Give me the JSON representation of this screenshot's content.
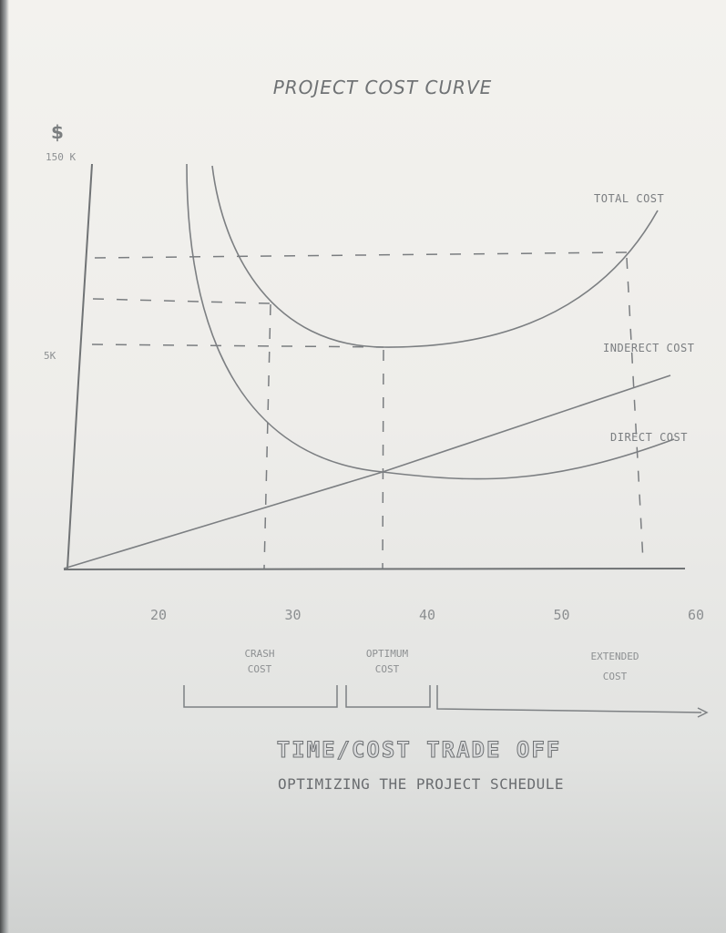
{
  "chart_data": {
    "type": "line",
    "title": "PROJECT COST CURVE",
    "ylabel": "$",
    "y_ticks": [
      "150 K",
      "5K"
    ],
    "x_ticks": [
      20,
      30,
      40,
      50,
      60
    ],
    "xlim": [
      20,
      60
    ],
    "series": [
      {
        "name": "TOTAL COST",
        "x": [
          24,
          26,
          29,
          32,
          35,
          36.5,
          40,
          45,
          50,
          54,
          56,
          58
        ],
        "y": [
          100,
          78,
          58,
          46,
          41,
          40,
          41,
          44,
          50,
          60,
          70,
          82
        ]
      },
      {
        "name": "INDERECT COST",
        "x": [
          22,
          23,
          25,
          28,
          32,
          36.5,
          42,
          48,
          52,
          55,
          58
        ],
        "y": [
          100,
          70,
          48,
          34,
          24,
          18,
          15,
          15,
          16,
          18,
          25
        ]
      },
      {
        "name": "DIRECT COST",
        "x": [
          14,
          36.5,
          58
        ],
        "y": [
          0,
          18,
          37
        ]
      }
    ],
    "annotations": [
      {
        "text": "CRASH",
        "text2": "COST"
      },
      {
        "text": "OPTIMUM",
        "text2": "COST"
      },
      {
        "text": "EXTENDED",
        "text2": "COST"
      }
    ],
    "footer_title": "TIME/COST TRADE OFF",
    "footer_subtitle": "OPTIMIZING THE PROJECT SCHEDULE"
  }
}
